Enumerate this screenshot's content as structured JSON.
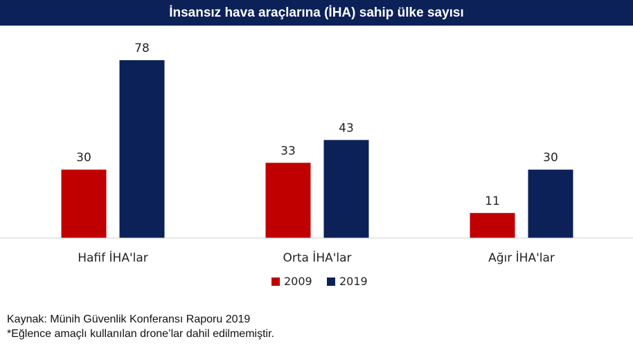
{
  "chart_data": {
    "type": "bar",
    "title": "İnsansız hava araçlarına (İHA) sahip ülke sayısı",
    "categories": [
      "Hafif İHA'lar",
      "Orta İHA'lar",
      "Ağır İHA'lar"
    ],
    "series": [
      {
        "name": "2009",
        "values": [
          30,
          33,
          11
        ],
        "color": "#c00000"
      },
      {
        "name": "2019",
        "values": [
          78,
          43,
          30
        ],
        "color": "#0b2157"
      }
    ],
    "ylim": [
      0,
      85
    ],
    "grid": false,
    "legend": "bottom-center"
  },
  "footnotes": {
    "source": "Kaynak: Münih Güvenlik Konferansı Raporu 2019",
    "note": "*Eğlence amaçlı kullanılan drone’lar dahil edilmemiştir."
  }
}
